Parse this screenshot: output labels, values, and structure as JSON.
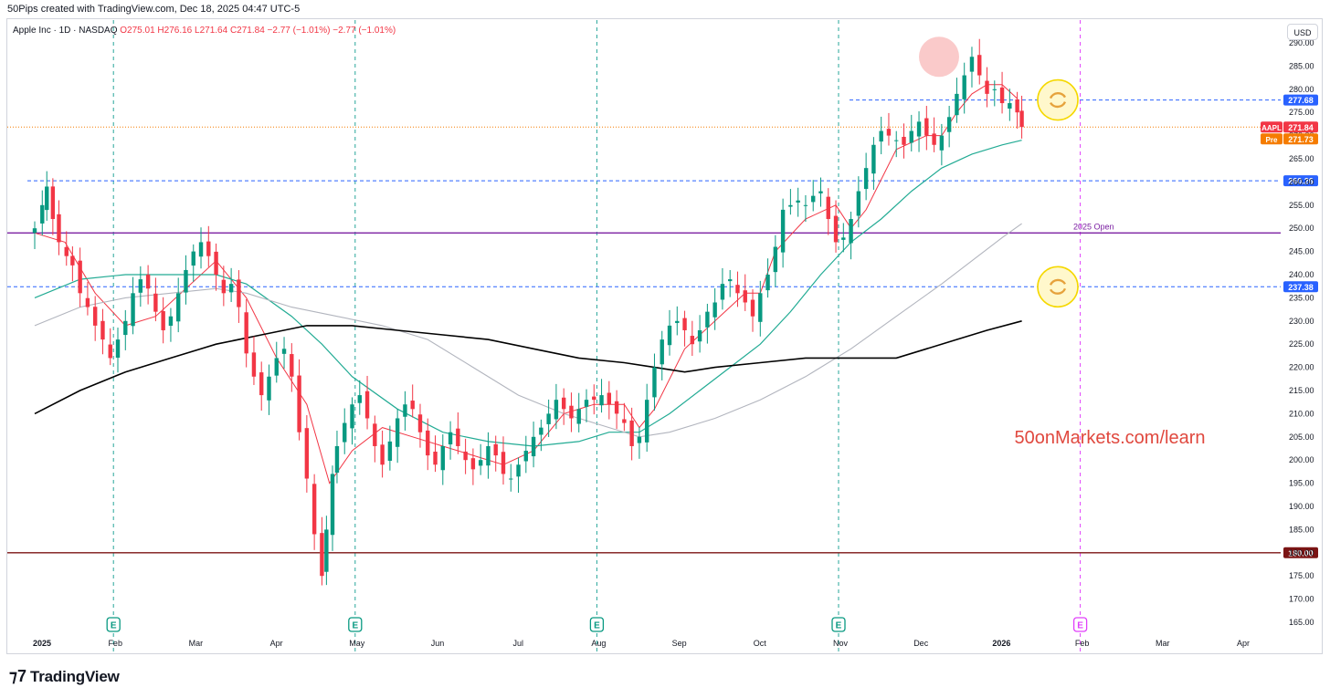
{
  "header": {
    "attribution": "50Pips created with TradingView.com, Dec 18, 2025 04:47 UTC-5"
  },
  "legend": {
    "symbol": "Apple Inc · 1D · NASDAQ",
    "open": "O275.01",
    "high": "H276.16",
    "low": "L271.64",
    "close": "C271.84",
    "change": "−2.77 (−1.01%)",
    "change2": "−2.77 (−1.01%)"
  },
  "currency_button": "USD",
  "watermark": "50onMarkets.com/learn",
  "footer": {
    "brand": "TradingView",
    "logo_icon": "tradingview-logo-icon"
  },
  "colors": {
    "up": "#089981",
    "down": "#f23645",
    "ema_short": "#f23645",
    "ema_mid": "#22ab94",
    "sma_long": "#000000",
    "sma_gray": "#b2b5be",
    "level_blue": "#2962ff",
    "open_line": "#7b1fa2",
    "support_line": "#7b1414",
    "watermark": "#e0483e",
    "price_orange": "#f57c00"
  },
  "chart_data": {
    "type": "candlestick",
    "symbol": "AAPL",
    "interval": "1D",
    "ylim": [
      163,
      296
    ],
    "y_ticks": [
      165,
      170,
      175,
      180,
      185,
      190,
      195,
      200,
      205,
      210,
      215,
      220,
      225,
      230,
      235,
      240,
      245,
      250,
      255,
      260,
      265,
      270,
      275,
      280,
      285,
      290
    ],
    "x_labels": [
      "2025",
      "Feb",
      "Mar",
      "Apr",
      "May",
      "Jun",
      "Jul",
      "Aug",
      "Sep",
      "Oct",
      "Nov",
      "Dec",
      "2026",
      "Feb",
      "Mar",
      "Apr"
    ],
    "x_label_months": [
      0,
      1,
      2,
      3,
      4,
      5,
      6,
      7,
      8,
      9,
      10,
      11,
      12,
      13,
      14,
      15
    ],
    "closes": [
      [
        0,
        250
      ],
      [
        0.5,
        255
      ],
      [
        0.8,
        259
      ],
      [
        1.2,
        252
      ],
      [
        1.6,
        247
      ],
      [
        2.1,
        244
      ],
      [
        2.5,
        242
      ],
      [
        3,
        236
      ],
      [
        3.5,
        233
      ],
      [
        4,
        229
      ],
      [
        4.5,
        226
      ],
      [
        5,
        222
      ],
      [
        5.5,
        226
      ],
      [
        6,
        230
      ],
      [
        6.5,
        236
      ],
      [
        7,
        239
      ],
      [
        7.5,
        237
      ],
      [
        8,
        232
      ],
      [
        8.5,
        228
      ],
      [
        9,
        231
      ],
      [
        9.5,
        236
      ],
      [
        10,
        241
      ],
      [
        10.5,
        245
      ],
      [
        11,
        247
      ],
      [
        11.5,
        244
      ],
      [
        12,
        240
      ],
      [
        12.5,
        236
      ],
      [
        13,
        238
      ],
      [
        13.5,
        233
      ],
      [
        14,
        223
      ],
      [
        14.5,
        218
      ],
      [
        15,
        214
      ],
      [
        15.5,
        218
      ],
      [
        16,
        222
      ],
      [
        16.5,
        224
      ],
      [
        17,
        218
      ],
      [
        17.5,
        206
      ],
      [
        18,
        196
      ],
      [
        18.5,
        184
      ],
      [
        19,
        175
      ],
      [
        19.3,
        185
      ],
      [
        19.7,
        197
      ],
      [
        20,
        203
      ],
      [
        20.5,
        208
      ],
      [
        21,
        212
      ],
      [
        21.5,
        214
      ],
      [
        22,
        209
      ],
      [
        22.5,
        203
      ],
      [
        23,
        199
      ],
      [
        23.5,
        204
      ],
      [
        24,
        209
      ],
      [
        24.5,
        212
      ],
      [
        25,
        211
      ],
      [
        25.5,
        206
      ],
      [
        26,
        201
      ],
      [
        26.5,
        199
      ],
      [
        27,
        203
      ],
      [
        27.5,
        206
      ],
      [
        28,
        203
      ],
      [
        28.5,
        200
      ],
      [
        29,
        198
      ],
      [
        29.5,
        200
      ],
      [
        30,
        203
      ],
      [
        30.5,
        201
      ],
      [
        31,
        197
      ],
      [
        31.5,
        196
      ],
      [
        32,
        199
      ],
      [
        32.5,
        202
      ],
      [
        33,
        205
      ],
      [
        33.5,
        207
      ],
      [
        34,
        210
      ],
      [
        34.5,
        213
      ],
      [
        35,
        211
      ],
      [
        35.5,
        209
      ],
      [
        36,
        211
      ],
      [
        36.5,
        213
      ],
      [
        37,
        213
      ],
      [
        37.5,
        214
      ],
      [
        38,
        212
      ],
      [
        38.5,
        210
      ],
      [
        39,
        208
      ],
      [
        39.5,
        203
      ],
      [
        40,
        205
      ],
      [
        40.5,
        213
      ],
      [
        41,
        220
      ],
      [
        41.5,
        226
      ],
      [
        42,
        229
      ],
      [
        42.5,
        230
      ],
      [
        43,
        228
      ],
      [
        43.5,
        225
      ],
      [
        44,
        228
      ],
      [
        44.5,
        232
      ],
      [
        45,
        234
      ],
      [
        45.5,
        238
      ],
      [
        46,
        239
      ],
      [
        46.5,
        236
      ],
      [
        47,
        234
      ],
      [
        47.5,
        231
      ],
      [
        48,
        236
      ],
      [
        48.5,
        240
      ],
      [
        49,
        246
      ],
      [
        49.5,
        254
      ],
      [
        50,
        255
      ],
      [
        50.5,
        256
      ],
      [
        51,
        255
      ],
      [
        51.5,
        257
      ],
      [
        52,
        258
      ],
      [
        52.5,
        252
      ],
      [
        53,
        247
      ],
      [
        53.5,
        248
      ],
      [
        54,
        252
      ],
      [
        54.5,
        258
      ],
      [
        55,
        263
      ],
      [
        55.5,
        268
      ],
      [
        56,
        271
      ],
      [
        56.5,
        270
      ],
      [
        57,
        269
      ],
      [
        57.5,
        268
      ],
      [
        58,
        271
      ],
      [
        58.5,
        273
      ],
      [
        59,
        270
      ],
      [
        59.5,
        268
      ],
      [
        60,
        270
      ],
      [
        60.5,
        274
      ],
      [
        61,
        279
      ],
      [
        61.5,
        283
      ],
      [
        62,
        287
      ],
      [
        62.5,
        283
      ],
      [
        63,
        279
      ],
      [
        63.5,
        280
      ],
      [
        64,
        277
      ],
      [
        64.5,
        277
      ],
      [
        65,
        275
      ],
      [
        65.3,
        271.84
      ]
    ],
    "series": [
      {
        "name": "",
        "type": "line",
        "values": [
          [
            0,
            249
          ],
          [
            2,
            247
          ],
          [
            4,
            236
          ],
          [
            6,
            229
          ],
          [
            8,
            231
          ],
          [
            10,
            237
          ],
          [
            12,
            243
          ],
          [
            14,
            235
          ],
          [
            16,
            222
          ],
          [
            18,
            212
          ],
          [
            19.5,
            195
          ],
          [
            21,
            202
          ],
          [
            23,
            207
          ],
          [
            25,
            205
          ],
          [
            27,
            203
          ],
          [
            29,
            201
          ],
          [
            31,
            199
          ],
          [
            33,
            202
          ],
          [
            35,
            210
          ],
          [
            37,
            212
          ],
          [
            39,
            212
          ],
          [
            40,
            207
          ],
          [
            41,
            211
          ],
          [
            43,
            224
          ],
          [
            45,
            230
          ],
          [
            47,
            236
          ],
          [
            48,
            236
          ],
          [
            49,
            245
          ],
          [
            51,
            252
          ],
          [
            53,
            255
          ],
          [
            54,
            250
          ],
          [
            55,
            254
          ],
          [
            57,
            267
          ],
          [
            59,
            270
          ],
          [
            60,
            270
          ],
          [
            61,
            275
          ],
          [
            62,
            279
          ],
          [
            63,
            281
          ],
          [
            64,
            281
          ],
          [
            65,
            278
          ]
        ]
      },
      {
        "name": "",
        "type": "line",
        "values": [
          [
            0,
            235
          ],
          [
            3,
            239
          ],
          [
            6,
            240
          ],
          [
            9,
            240
          ],
          [
            12,
            240
          ],
          [
            14,
            238
          ],
          [
            17,
            231
          ],
          [
            19,
            225
          ],
          [
            21,
            218
          ],
          [
            24,
            211
          ],
          [
            27,
            206
          ],
          [
            30,
            204
          ],
          [
            33,
            203
          ],
          [
            36,
            204
          ],
          [
            38,
            206
          ],
          [
            40,
            206
          ],
          [
            42,
            210
          ],
          [
            44,
            215
          ],
          [
            46,
            220
          ],
          [
            48,
            225
          ],
          [
            50,
            232
          ],
          [
            52,
            240
          ],
          [
            54,
            247
          ],
          [
            56,
            252
          ],
          [
            58,
            258
          ],
          [
            60,
            263
          ],
          [
            62,
            266
          ],
          [
            64,
            268
          ],
          [
            65.3,
            269
          ]
        ]
      },
      {
        "name": "",
        "type": "line",
        "values": [
          [
            0,
            229
          ],
          [
            3,
            233
          ],
          [
            6,
            235
          ],
          [
            9,
            236
          ],
          [
            12,
            237
          ],
          [
            14,
            236
          ],
          [
            17,
            233
          ],
          [
            20,
            231
          ],
          [
            23,
            229
          ],
          [
            26,
            226
          ],
          [
            29,
            220
          ],
          [
            32,
            214
          ],
          [
            35,
            210
          ],
          [
            38,
            207
          ],
          [
            40,
            205
          ],
          [
            42,
            206
          ],
          [
            45,
            209
          ],
          [
            48,
            213
          ],
          [
            51,
            218
          ],
          [
            54,
            224
          ],
          [
            57,
            231
          ],
          [
            60,
            238
          ],
          [
            62,
            243
          ],
          [
            64,
            248
          ],
          [
            65.3,
            251
          ]
        ]
      },
      {
        "name": "",
        "type": "line",
        "values": [
          [
            0,
            210
          ],
          [
            3,
            215
          ],
          [
            6,
            219
          ],
          [
            9,
            222
          ],
          [
            12,
            225
          ],
          [
            15,
            227
          ],
          [
            18,
            229
          ],
          [
            21,
            229
          ],
          [
            24,
            228
          ],
          [
            27,
            227
          ],
          [
            30,
            226
          ],
          [
            33,
            224
          ],
          [
            36,
            222
          ],
          [
            39,
            221
          ],
          [
            41,
            220
          ],
          [
            43,
            219
          ],
          [
            45,
            220
          ],
          [
            48,
            221
          ],
          [
            51,
            222
          ],
          [
            54,
            222
          ],
          [
            57,
            222
          ],
          [
            59,
            224
          ],
          [
            61,
            226
          ],
          [
            63,
            228
          ],
          [
            65.3,
            230
          ]
        ]
      }
    ],
    "levels": [
      {
        "price": 277.68,
        "label": "277.68",
        "style": "dashed",
        "color": "#2962ff"
      },
      {
        "price": 260.26,
        "label": "260.26",
        "style": "dashed",
        "color": "#2962ff"
      },
      {
        "price": 237.38,
        "label": "237.38",
        "style": "dashed",
        "color": "#2962ff"
      },
      {
        "price": 249.0,
        "label": "2025 Open",
        "style": "solid",
        "color": "#7b1fa2"
      },
      {
        "price": 180.0,
        "label": "180.00",
        "style": "solid",
        "color": "#7b1414"
      }
    ],
    "price_tags": [
      {
        "symbol": "AAPL",
        "value": "271.84",
        "color": "#f23645"
      },
      {
        "symbol": "Pre",
        "value": "271.73",
        "color": "#f57c00"
      }
    ],
    "earnings_markers": {
      "icon": "earnings-e-icon",
      "letter": "E",
      "dates_month_index": [
        1.0,
        4.0,
        7.0,
        10.0,
        13.0
      ]
    },
    "refresh_icons": [
      {
        "icon": "refresh-circle-icon",
        "price": 277.68
      },
      {
        "icon": "refresh-circle-icon",
        "price": 237.38
      }
    ],
    "highlight": {
      "icon": "peak-highlight-circle",
      "price": 287
    }
  }
}
